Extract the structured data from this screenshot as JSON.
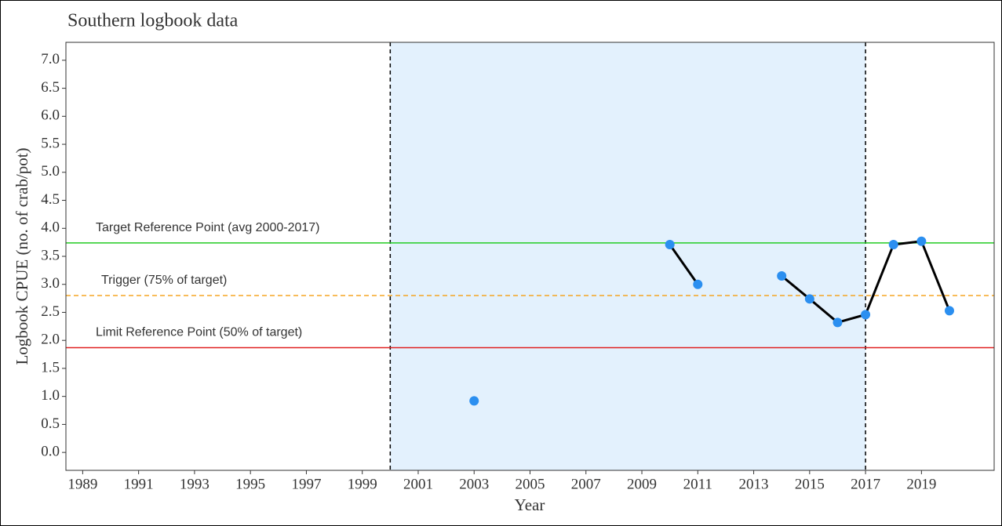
{
  "chart_data": {
    "type": "line",
    "title": "Southern logbook data",
    "x_label": "Year",
    "y_label": "Logbook CPUE (no. of crab/pot)",
    "x": [
      2003,
      2004,
      2005,
      2006,
      2007,
      2008,
      2009,
      2010,
      2011,
      2012,
      2013,
      2014,
      2015,
      2016,
      2017,
      2018,
      2019,
      2020
    ],
    "series": [
      {
        "color": "#2b8ff0",
        "line_color": "#000000",
        "values": [
          0.92,
          null,
          null,
          null,
          null,
          null,
          null,
          3.71,
          3.0,
          null,
          null,
          3.15,
          2.74,
          2.32,
          2.46,
          3.71,
          3.77,
          2.53
        ]
      }
    ],
    "xlim": [
      1988.4,
      2021.6
    ],
    "ylim": [
      -0.32,
      7.32
    ],
    "xticks": [
      1989,
      1991,
      1993,
      1995,
      1997,
      1999,
      2001,
      2003,
      2005,
      2007,
      2009,
      2011,
      2013,
      2015,
      2017,
      2019
    ],
    "yticks": [
      {
        "value": 0,
        "label": "0.0"
      },
      0.5,
      {
        "value": 1,
        "label": "1.0"
      },
      1.5,
      {
        "value": 2,
        "label": "2.0"
      },
      2.5,
      {
        "value": 3,
        "label": "3.0"
      },
      3.5,
      {
        "value": 4,
        "label": "4.0"
      },
      4.5,
      {
        "value": 5,
        "label": "5.0"
      },
      5.5,
      {
        "value": 6,
        "label": "6.0"
      },
      6.5,
      {
        "value": 7,
        "label": "7.0"
      }
    ],
    "shaded_region": {
      "x": [
        2000,
        2017
      ],
      "color": "#e3f1fd"
    },
    "reference_lines": [
      {
        "label": "Target Reference Point (avg 2000-2017)",
        "value": 3.74,
        "color": "#22cc22",
        "dashed": false
      },
      {
        "label": "Trigger (75% of target)",
        "value": 2.8,
        "color": "#f5a623",
        "dashed": true
      },
      {
        "label": "Limit Reference Point (50% of target)",
        "value": 1.87,
        "color": "#e02020",
        "dashed": false
      }
    ],
    "grid": false
  }
}
